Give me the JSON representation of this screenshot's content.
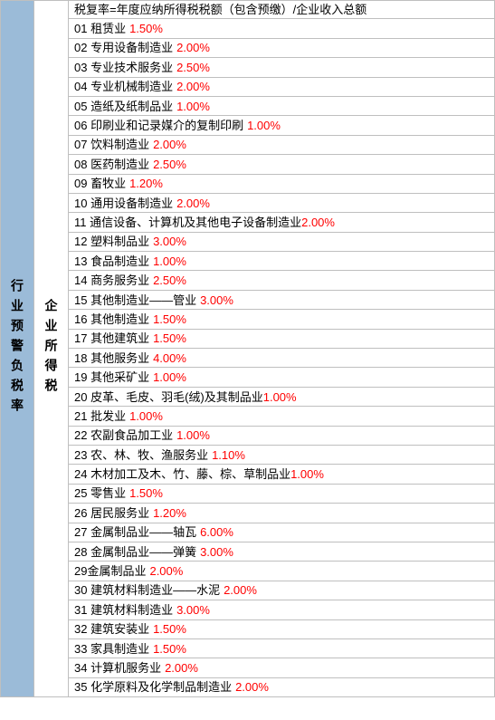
{
  "leftHeader": "行业预警负税率",
  "midHeader": "企业所得税",
  "formula": "税复率=年度应纳所得税税额（包含预缴）/企业收入总额",
  "rateColor": "#ff0000",
  "textColor": "#000000",
  "leftBg": "#9bbbd8",
  "borderColor": "#bfbfbf",
  "rows": [
    {
      "num": "01",
      "name": "租赁业",
      "rate": "1.50%"
    },
    {
      "num": "02",
      "name": "专用设备制造业",
      "rate": "2.00%"
    },
    {
      "num": "03",
      "name": "专业技术服务业",
      "rate": "2.50%"
    },
    {
      "num": "04",
      "name": "专业机械制造业",
      "rate": "2.00%"
    },
    {
      "num": "05",
      "name": "造纸及纸制品业",
      "rate": "1.00%"
    },
    {
      "num": "06",
      "name": "印刷业和记录媒介的复制印刷",
      "rate": "1.00%"
    },
    {
      "num": "07",
      "name": "饮料制造业",
      "rate": "2.00%"
    },
    {
      "num": "08",
      "name": "医药制造业",
      "rate": "2.50%"
    },
    {
      "num": "09",
      "name": "畜牧业",
      "rate": "1.20%"
    },
    {
      "num": "10",
      "name": "通用设备制造业",
      "rate": "2.00%"
    },
    {
      "num": "11",
      "name": "通信设备、计算机及其他电子设备制造业",
      "rate": "2.00%"
    },
    {
      "num": "12",
      "name": "塑料制品业",
      "rate": "3.00%"
    },
    {
      "num": "13",
      "name": "食品制造业",
      "rate": "1.00%"
    },
    {
      "num": "14",
      "name": "商务服务业",
      "rate": "2.50%"
    },
    {
      "num": "15",
      "name": "其他制造业——管业",
      "rate": "3.00%"
    },
    {
      "num": "16",
      "name": "其他制造业",
      "rate": "1.50%"
    },
    {
      "num": "17",
      "name": "其他建筑业",
      "rate": "1.50%"
    },
    {
      "num": "18",
      "name": "其他服务业",
      "rate": "4.00%"
    },
    {
      "num": "19",
      "name": "其他采矿业",
      "rate": "1.00%"
    },
    {
      "num": "20",
      "name": "皮革、毛皮、羽毛(绒)及其制品业",
      "rate": "1.00%"
    },
    {
      "num": "21",
      "name": "批发业",
      "rate": "1.00%"
    },
    {
      "num": "22",
      "name": "农副食品加工业",
      "rate": "1.00%"
    },
    {
      "num": "23",
      "name": "农、林、牧、渔服务业",
      "rate": "1.10%"
    },
    {
      "num": "24",
      "name": "木材加工及木、竹、藤、棕、草制品业",
      "rate": "1.00%"
    },
    {
      "num": "25",
      "name": "零售业",
      "rate": "1.50%"
    },
    {
      "num": "26",
      "name": "居民服务业",
      "rate": "1.20%"
    },
    {
      "num": "27",
      "name": "金属制品业——轴瓦",
      "rate": "6.00%"
    },
    {
      "num": "28",
      "name": "金属制品业——弹簧",
      "rate": "3.00%"
    },
    {
      "num": "29",
      "name": "金属制品业",
      "rate": "2.00%",
      "nospace": true
    },
    {
      "num": "30",
      "name": "建筑材料制造业——水泥",
      "rate": "2.00%"
    },
    {
      "num": "31",
      "name": "建筑材料制造业",
      "rate": "3.00%"
    },
    {
      "num": "32",
      "name": "建筑安装业",
      "rate": "1.50%"
    },
    {
      "num": "33",
      "name": "家具制造业",
      "rate": "1.50%"
    },
    {
      "num": "34",
      "name": "计算机服务业",
      "rate": "2.00%"
    },
    {
      "num": "35",
      "name": "化学原料及化学制品制造业",
      "rate": "2.00%"
    }
  ]
}
